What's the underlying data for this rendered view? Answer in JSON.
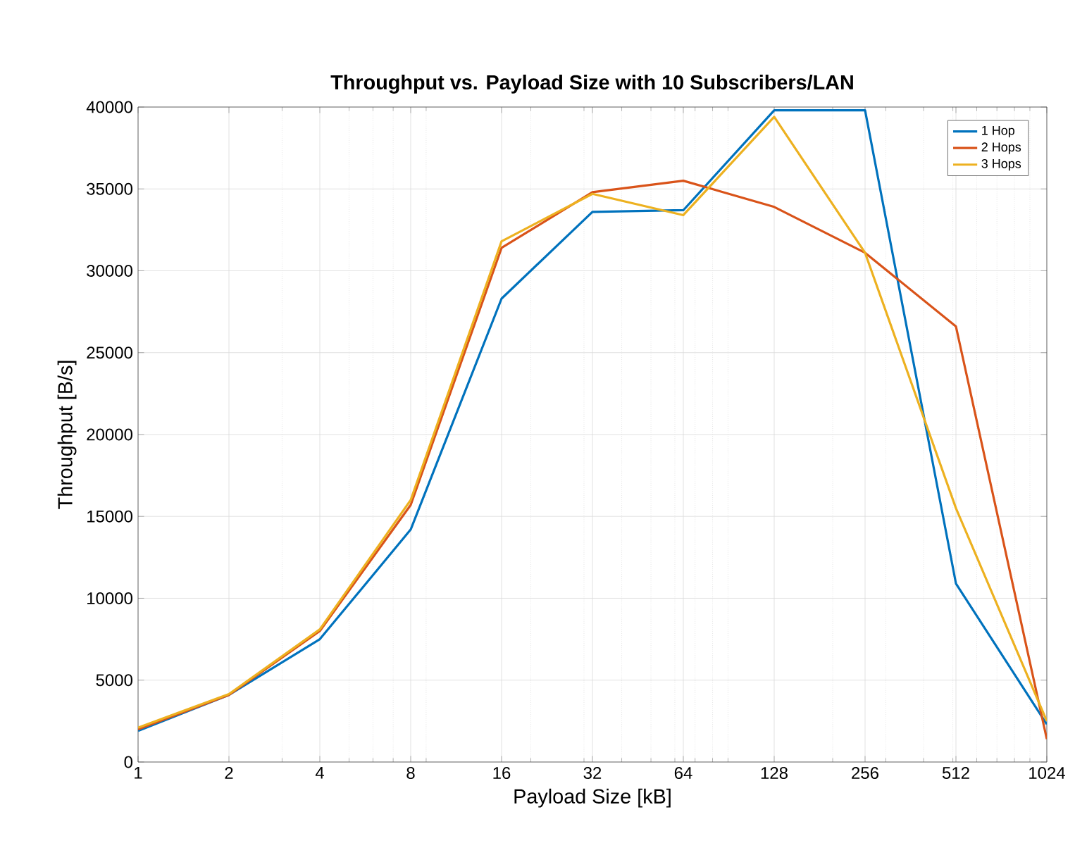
{
  "chart_data": {
    "type": "line",
    "title": "Throughput vs. Payload Size with 10 Subscribers/LAN",
    "xlabel": "Payload Size [kB]",
    "ylabel": "Throughput [B/s]",
    "x": [
      1,
      2,
      4,
      8,
      16,
      32,
      64,
      128,
      256,
      512,
      1024
    ],
    "series": [
      {
        "name": "1 Hop",
        "color": "#0072bd",
        "values": [
          1900,
          4100,
          7500,
          14200,
          28300,
          33600,
          33700,
          39800,
          39800,
          10900,
          2300
        ]
      },
      {
        "name": "2 Hops",
        "color": "#d95319",
        "values": [
          2000,
          4100,
          8000,
          15700,
          31400,
          34800,
          35500,
          33900,
          31100,
          26600,
          1400
        ]
      },
      {
        "name": "3 Hops",
        "color": "#edb120",
        "values": [
          2100,
          4150,
          8100,
          16000,
          31800,
          34700,
          33400,
          39400,
          31100,
          15500,
          2500
        ]
      }
    ],
    "log": "x",
    "xlim": [
      1,
      1024
    ],
    "ylim": [
      0,
      40000
    ],
    "xticks": [
      1,
      2,
      4,
      8,
      16,
      32,
      64,
      128,
      256,
      512,
      1024
    ],
    "yticks": [
      0,
      5000,
      10000,
      15000,
      20000,
      25000,
      30000,
      35000,
      40000
    ],
    "grid": true,
    "legend": "top right",
    "marker": "none",
    "line_style": "solid"
  }
}
